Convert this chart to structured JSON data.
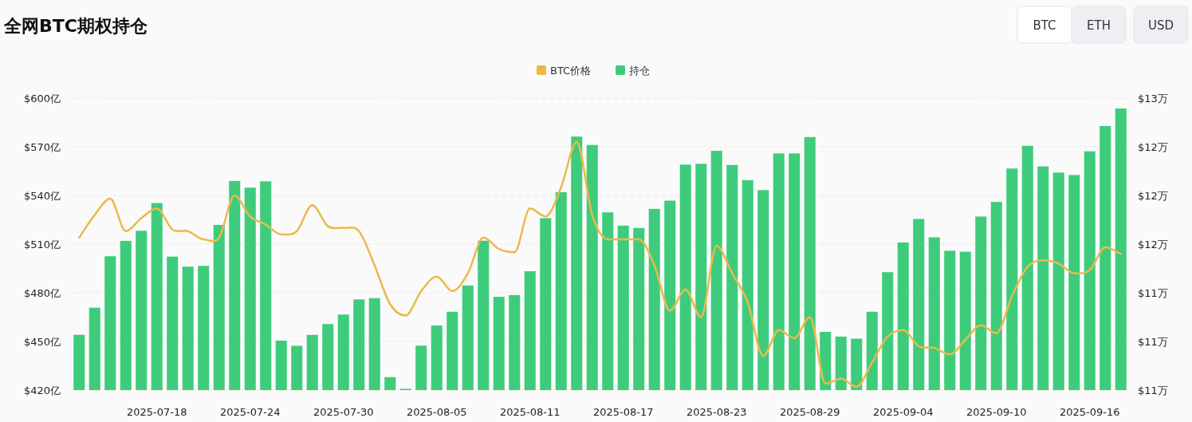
{
  "chart_data": {
    "type": "bar",
    "title": "全网BTC期权持仓",
    "annotations": [
      "BTC",
      "ETH",
      "USD"
    ],
    "categories": [
      null,
      null,
      null,
      null,
      null,
      "2025-07-18",
      null,
      null,
      null,
      null,
      null,
      "2025-07-24",
      null,
      null,
      null,
      null,
      null,
      "2025-07-30",
      null,
      null,
      null,
      null,
      null,
      "2025-08-05",
      null,
      null,
      null,
      null,
      null,
      "2025-08-11",
      null,
      null,
      null,
      null,
      null,
      "2025-08-17",
      null,
      null,
      null,
      null,
      null,
      "2025-08-23",
      null,
      null,
      null,
      null,
      null,
      "2025-08-29",
      null,
      null,
      null,
      null,
      null,
      "2025-09-04",
      null,
      null,
      null,
      null,
      null,
      "2025-09-10",
      null,
      null,
      null,
      null,
      null,
      "2025-09-16",
      null,
      null
    ],
    "series": [
      {
        "name": "BTC价格",
        "type": "line",
        "axis": "y2",
        "color": "#ebb94a",
        "values": [
          11.74,
          11.88,
          11.98,
          11.78,
          11.86,
          11.92,
          11.79,
          11.78,
          11.73,
          11.74,
          12.0,
          11.87,
          11.82,
          11.76,
          11.78,
          11.94,
          11.81,
          11.8,
          11.78,
          11.57,
          11.33,
          11.26,
          11.41,
          11.5,
          11.41,
          11.52,
          11.74,
          11.67,
          11.65,
          11.92,
          11.87,
          12.05,
          12.33,
          11.88,
          11.73,
          11.73,
          11.73,
          11.57,
          11.29,
          11.42,
          11.25,
          11.69,
          11.52,
          11.34,
          11.01,
          11.17,
          11.12,
          11.25,
          10.84,
          10.87,
          10.82,
          10.97,
          11.13,
          11.17,
          11.07,
          11.06,
          11.02,
          11.11,
          11.2,
          11.15,
          11.38,
          11.56,
          11.6,
          11.58,
          11.52,
          11.54,
          11.68,
          11.64
        ]
      },
      {
        "name": "持仓",
        "type": "bar",
        "color": "#3ecc7c",
        "values": [
          454.1,
          470.8,
          502.5,
          512.0,
          518.2,
          535.3,
          502.3,
          496.1,
          496.6,
          521.8,
          548.9,
          544.8,
          548.7,
          450.5,
          447.3,
          454.0,
          460.7,
          466.6,
          475.9,
          476.7,
          428.0,
          420.8,
          447.4,
          459.8,
          468.3,
          484.5,
          512.1,
          477.5,
          478.6,
          493.3,
          526.0,
          542.0,
          576.3,
          571.1,
          529.6,
          521.4,
          519.9,
          531.7,
          536.8,
          559.0,
          559.5,
          567.5,
          558.8,
          549.4,
          543.3,
          565.9,
          565.9,
          576.0,
          455.9,
          453.0,
          451.7,
          468.3,
          492.7,
          511.0,
          525.5,
          514.2,
          505.9,
          505.3,
          527.0,
          536.0,
          556.6,
          570.6,
          557.9,
          554.1,
          552.6,
          567.2,
          582.8,
          593.6
        ]
      }
    ],
    "ylim": [
      420,
      600
    ],
    "yticks": [
      {
        "value": 420,
        "label": "$420亿"
      },
      {
        "value": 450,
        "label": "$450亿"
      },
      {
        "value": 480,
        "label": "$480亿"
      },
      {
        "value": 510,
        "label": "$510亿"
      },
      {
        "value": 540,
        "label": "$540亿"
      },
      {
        "value": 570,
        "label": "$570亿"
      },
      {
        "value": 600,
        "label": "$600亿"
      }
    ],
    "y2lim": [
      10.8,
      12.6
    ],
    "y2ticks": [
      {
        "value": 10.8,
        "label": "$11万"
      },
      {
        "value": 11.1,
        "label": "$11万"
      },
      {
        "value": 11.4,
        "label": "$11万"
      },
      {
        "value": 11.7,
        "label": "$12万"
      },
      {
        "value": 12.0,
        "label": "$12万"
      },
      {
        "value": 12.3,
        "label": "$12万"
      },
      {
        "value": 12.6,
        "label": "$13万"
      }
    ],
    "grid": "y",
    "legend": "top"
  }
}
